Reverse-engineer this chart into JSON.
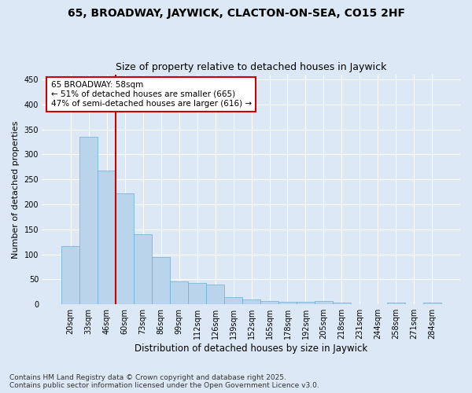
{
  "title": "65, BROADWAY, JAYWICK, CLACTON-ON-SEA, CO15 2HF",
  "subtitle": "Size of property relative to detached houses in Jaywick",
  "xlabel": "Distribution of detached houses by size in Jaywick",
  "ylabel": "Number of detached properties",
  "categories": [
    "20sqm",
    "33sqm",
    "46sqm",
    "60sqm",
    "73sqm",
    "86sqm",
    "99sqm",
    "112sqm",
    "126sqm",
    "139sqm",
    "152sqm",
    "165sqm",
    "178sqm",
    "192sqm",
    "205sqm",
    "218sqm",
    "231sqm",
    "244sqm",
    "258sqm",
    "271sqm",
    "284sqm"
  ],
  "values": [
    116,
    335,
    268,
    222,
    140,
    94,
    46,
    43,
    40,
    15,
    9,
    6,
    5,
    5,
    6,
    3,
    0,
    0,
    3,
    0,
    3
  ],
  "bar_color": "#bad4ec",
  "bar_edge_color": "#6aaed6",
  "background_color": "#dce8f5",
  "grid_color": "#ffffff",
  "vline_x": 2.5,
  "annotation_text_line1": "65 BROADWAY: 58sqm",
  "annotation_text_line2": "← 51% of detached houses are smaller (665)",
  "annotation_text_line3": "47% of semi-detached houses are larger (616) →",
  "annotation_box_color": "#ffffff",
  "annotation_box_edge": "#cc0000",
  "vline_color": "#cc0000",
  "ylim": [
    0,
    460
  ],
  "yticks": [
    0,
    50,
    100,
    150,
    200,
    250,
    300,
    350,
    400,
    450
  ],
  "footer": "Contains HM Land Registry data © Crown copyright and database right 2025.\nContains public sector information licensed under the Open Government Licence v3.0."
}
